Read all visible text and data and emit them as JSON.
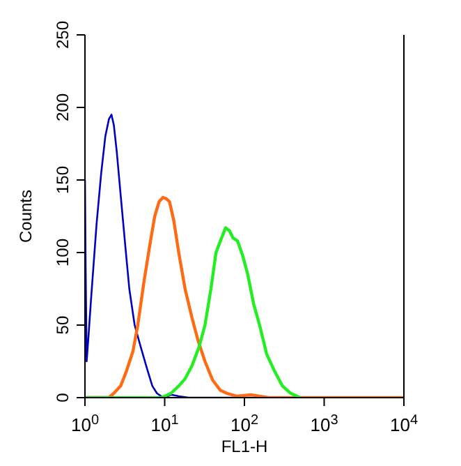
{
  "chart_data": {
    "type": "line",
    "xlabel": "FL1-H",
    "ylabel": "Counts",
    "log": "x",
    "xlim": [
      1,
      10000
    ],
    "xticks": [
      {
        "value": 1,
        "label": "10$^{0}$"
      },
      {
        "value": 10,
        "label": "10$^{1}$"
      },
      {
        "value": 100,
        "label": "10$^{2}$"
      },
      {
        "value": 1000,
        "label": "10$^{3}$"
      },
      {
        "value": 10000,
        "label": "10$^{4}$"
      }
    ],
    "ylim": [
      0,
      250
    ],
    "yticks": [
      0,
      50,
      100,
      150,
      200,
      250
    ],
    "marker": "none",
    "line_style": "solid",
    "series": [
      {
        "color": "#0000c0",
        "x": [
          1,
          1.02,
          1.05,
          1.1,
          1.2,
          1.4,
          1.6,
          1.8,
          2,
          2.15,
          2.3,
          2.5,
          2.8,
          3.2,
          3.6,
          4.2,
          5,
          6,
          7,
          8,
          9,
          10,
          12,
          15,
          20,
          100,
          10000
        ],
        "values": [
          150,
          90,
          25,
          40,
          70,
          120,
          155,
          180,
          192,
          195,
          188,
          170,
          140,
          105,
          75,
          50,
          35,
          20,
          8,
          3,
          1,
          0,
          2,
          1,
          0,
          0,
          0
        ]
      },
      {
        "color": "#ff6a13",
        "x": [
          1,
          2,
          2.3,
          2.8,
          3.3,
          4,
          4.6,
          5.5,
          6.5,
          7.5,
          8.5,
          9.5,
          10.5,
          11.5,
          13,
          15,
          18,
          22,
          26,
          32,
          40,
          50,
          60,
          80,
          120,
          200,
          10000
        ],
        "values": [
          0,
          0,
          3,
          8,
          18,
          32,
          50,
          80,
          105,
          125,
          135,
          138,
          137,
          135,
          122,
          100,
          75,
          55,
          40,
          25,
          12,
          5,
          3,
          1,
          2,
          0,
          0
        ]
      },
      {
        "color": "#22ee22",
        "x": [
          1,
          9,
          10,
          12,
          15,
          18,
          22,
          27,
          32,
          38,
          44,
          50,
          58,
          65,
          72,
          82,
          95,
          110,
          130,
          155,
          190,
          240,
          300,
          380,
          500
        ],
        "values": [
          0,
          0,
          1,
          3,
          8,
          13,
          22,
          35,
          50,
          75,
          100,
          108,
          117,
          115,
          110,
          108,
          98,
          85,
          65,
          50,
          30,
          18,
          8,
          3,
          0
        ]
      }
    ]
  }
}
